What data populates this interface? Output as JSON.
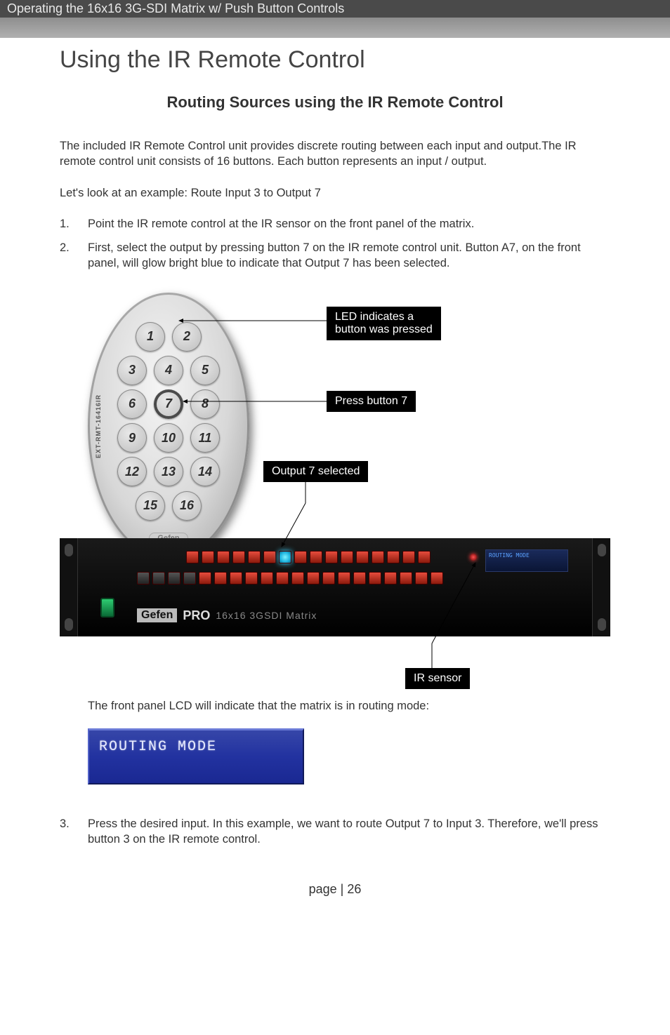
{
  "header": {
    "chapter": "Operating the 16x16 3G-SDI Matrix w/ Push Button Controls",
    "page_title": "Using the IR Remote Control"
  },
  "section": {
    "heading": "Routing Sources using the IR Remote Control",
    "intro": "The included IR Remote Control unit provides discrete routing between each input and output.The IR remote control unit consists of 16 buttons.  Each button represents an input / output.",
    "example_lead": "Let's look at an example:  Route Input 3 to Output 7",
    "steps": {
      "s1_num": "1.",
      "s1": "Point the IR remote control at the IR sensor on the front panel of the matrix.",
      "s2_num": "2.",
      "s2": "First, select the output by pressing button 7 on the IR remote control unit.  Button A7, on the front panel,  will glow bright blue to indicate that Output 7 has been selected.",
      "s3_num": "3.",
      "s3": "Press the desired input.  In this example, we want to route Output 7 to Input 3.  Therefore, we'll press button 3 on the IR remote control."
    }
  },
  "diagram": {
    "remote": {
      "side_label": "EXT-RMT-16416IR",
      "buttons": [
        "1",
        "2",
        "3",
        "4",
        "5",
        "6",
        "7",
        "8",
        "9",
        "10",
        "11",
        "12",
        "13",
        "14",
        "15",
        "16"
      ],
      "selected_index": 6,
      "brand": "Gefen"
    },
    "callouts": {
      "led": "LED indicates a\nbutton was pressed",
      "press7": "Press button 7",
      "out7": "Output 7 selected",
      "ir": "IR sensor"
    },
    "rack": {
      "lcd_text": "ROUTING MODE",
      "logo_gefen": "Gefen",
      "logo_pro": "PRO",
      "model": "16x16 3GSDI Matrix",
      "top_row_count": 16,
      "lit_index": 6,
      "bottom_row_count": 20
    }
  },
  "after_diagram": {
    "lcd_note": "The front panel LCD will indicate that the matrix is in routing mode:",
    "lcd_text": "ROUTING MODE"
  },
  "footer": {
    "page_label": "page | 26"
  },
  "style": {
    "colors": {
      "header_dark": "#4a4a4a",
      "callout_bg": "#000000",
      "callout_text": "#ffffff",
      "lcd_bg_top": "#3646a8",
      "lcd_bg_bottom": "#1a2892",
      "lit_led": "#3fd5ff",
      "red_led": "#e74c3c"
    },
    "fonts": {
      "title": "Century Gothic",
      "body": "Arial"
    }
  }
}
